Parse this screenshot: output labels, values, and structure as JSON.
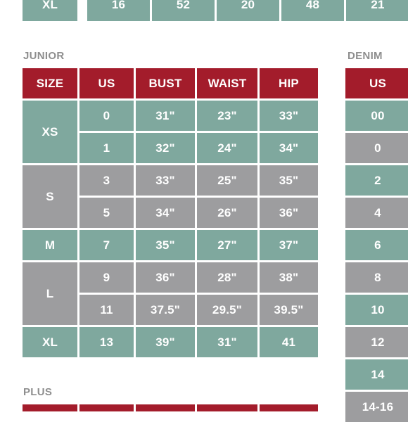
{
  "top_row": [
    "XL",
    "16",
    "52",
    "20",
    "48",
    "21"
  ],
  "junior": {
    "label": "JUNIOR",
    "headers": [
      "SIZE",
      "US",
      "BUST",
      "WAIST",
      "HIP"
    ],
    "rows": [
      {
        "us": "0",
        "bust": "31\"",
        "waist": "23\"",
        "hip": "33\""
      },
      {
        "us": "1",
        "bust": "32\"",
        "waist": "24\"",
        "hip": "34\""
      },
      {
        "us": "3",
        "bust": "33\"",
        "waist": "25\"",
        "hip": "35\""
      },
      {
        "us": "5",
        "bust": "34\"",
        "waist": "26\"",
        "hip": "36\""
      },
      {
        "us": "7",
        "bust": "35\"",
        "waist": "27\"",
        "hip": "37\""
      },
      {
        "us": "9",
        "bust": "36\"",
        "waist": "28\"",
        "hip": "38\""
      },
      {
        "us": "11",
        "bust": "37.5\"",
        "waist": "29.5\"",
        "hip": "39.5\""
      },
      {
        "us": "13",
        "bust": "39\"",
        "waist": "31\"",
        "hip": "41"
      }
    ],
    "sizes": [
      "XS",
      "S",
      "M",
      "L",
      "XL"
    ]
  },
  "denim": {
    "label": "DENIM",
    "header": "US",
    "values": [
      "00",
      "0",
      "2",
      "4",
      "6",
      "8",
      "10",
      "12",
      "14",
      "14-16"
    ]
  },
  "plus": {
    "label": "PLUS"
  },
  "colors": {
    "teal": "#7fa89e",
    "grey": "#9d9d9f",
    "red": "#a31c2b",
    "label": "#8e8e8e"
  }
}
